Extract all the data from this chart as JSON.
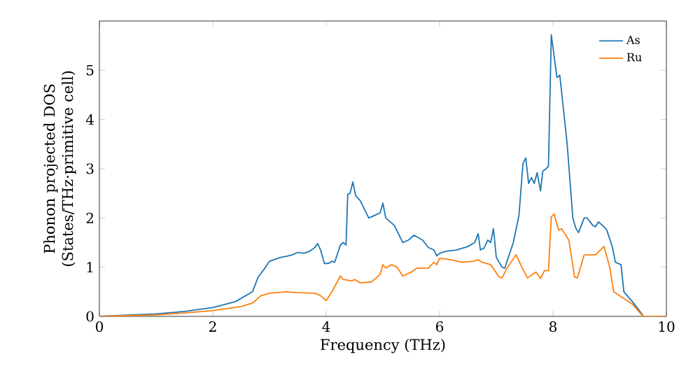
{
  "chart_data": {
    "type": "line",
    "xlabel": "Frequency (THz)",
    "ylabel": "Phonon projected DOS\n(States/THz·primitive cell)",
    "xlim": [
      0,
      10
    ],
    "ylim": [
      0,
      6
    ],
    "xticks": [
      0,
      2,
      4,
      6,
      8,
      10
    ],
    "yticks": [
      0,
      1,
      2,
      3,
      4,
      5
    ],
    "legend": "top right",
    "grid": false,
    "marker": "none",
    "line_style": "solid",
    "series": [
      {
        "name": "As",
        "color": "#1f77b4",
        "x": [
          0,
          1,
          1.5,
          2,
          2.4,
          2.7,
          2.8,
          2.9,
          3.0,
          3.2,
          3.3,
          3.4,
          3.5,
          3.6,
          3.7,
          3.8,
          3.85,
          3.9,
          3.97,
          4.05,
          4.1,
          4.15,
          4.25,
          4.3,
          4.35,
          4.38,
          4.42,
          4.47,
          4.52,
          4.6,
          4.75,
          4.85,
          4.95,
          5.0,
          5.05,
          5.2,
          5.35,
          5.45,
          5.55,
          5.7,
          5.8,
          5.9,
          5.95,
          6.0,
          6.1,
          6.3,
          6.5,
          6.62,
          6.68,
          6.72,
          6.78,
          6.85,
          6.9,
          6.95,
          7.0,
          7.1,
          7.15,
          7.3,
          7.4,
          7.47,
          7.52,
          7.57,
          7.62,
          7.67,
          7.72,
          7.78,
          7.82,
          7.88,
          7.92,
          7.97,
          8.03,
          8.07,
          8.12,
          8.25,
          8.35,
          8.4,
          8.45,
          8.55,
          8.6,
          8.7,
          8.75,
          8.8,
          8.9,
          8.95,
          9.05,
          9.1,
          9.2,
          9.25,
          9.4,
          9.5,
          9.6,
          10
        ],
        "values": [
          0,
          0.05,
          0.1,
          0.18,
          0.3,
          0.5,
          0.8,
          0.95,
          1.12,
          1.2,
          1.22,
          1.25,
          1.3,
          1.28,
          1.32,
          1.4,
          1.48,
          1.35,
          1.07,
          1.08,
          1.12,
          1.1,
          1.45,
          1.5,
          1.45,
          2.48,
          2.5,
          2.73,
          2.45,
          2.35,
          2.0,
          2.05,
          2.1,
          2.3,
          2.0,
          1.85,
          1.5,
          1.55,
          1.65,
          1.55,
          1.4,
          1.35,
          1.23,
          1.28,
          1.32,
          1.35,
          1.42,
          1.5,
          1.68,
          1.35,
          1.38,
          1.55,
          1.5,
          1.78,
          1.2,
          1.0,
          0.98,
          1.5,
          2.05,
          3.1,
          3.22,
          2.7,
          2.82,
          2.7,
          2.92,
          2.55,
          2.95,
          3.0,
          3.05,
          5.72,
          5.2,
          4.85,
          4.9,
          3.5,
          2.0,
          1.8,
          1.7,
          2.0,
          2.0,
          1.85,
          1.82,
          1.92,
          1.82,
          1.75,
          1.4,
          1.1,
          1.05,
          0.5,
          0.3,
          0.15,
          0,
          0
        ]
      },
      {
        "name": "Ru",
        "color": "#ff7f0e",
        "x": [
          0,
          1,
          1.5,
          2,
          2.5,
          2.7,
          2.85,
          3.0,
          3.3,
          3.5,
          3.8,
          3.9,
          4.0,
          4.1,
          4.25,
          4.3,
          4.45,
          4.5,
          4.6,
          4.8,
          4.95,
          5.0,
          5.05,
          5.15,
          5.25,
          5.35,
          5.5,
          5.6,
          5.8,
          5.9,
          5.95,
          6.0,
          6.2,
          6.4,
          6.6,
          6.68,
          6.75,
          6.9,
          7.05,
          7.1,
          7.2,
          7.35,
          7.45,
          7.55,
          7.7,
          7.78,
          7.85,
          7.92,
          7.97,
          8.02,
          8.1,
          8.15,
          8.28,
          8.38,
          8.43,
          8.55,
          8.75,
          8.9,
          9.0,
          9.07,
          9.2,
          9.4,
          9.55,
          9.6,
          10
        ],
        "values": [
          0,
          0.03,
          0.07,
          0.12,
          0.2,
          0.27,
          0.42,
          0.47,
          0.5,
          0.48,
          0.47,
          0.42,
          0.32,
          0.5,
          0.82,
          0.75,
          0.72,
          0.75,
          0.68,
          0.7,
          0.85,
          1.05,
          0.98,
          1.05,
          1.0,
          0.82,
          0.9,
          0.98,
          0.98,
          1.1,
          1.05,
          1.18,
          1.15,
          1.1,
          1.12,
          1.15,
          1.1,
          1.05,
          0.8,
          0.78,
          1.0,
          1.25,
          1.0,
          0.78,
          0.9,
          0.77,
          0.93,
          0.93,
          2.02,
          2.08,
          1.75,
          1.78,
          1.55,
          0.8,
          0.78,
          1.25,
          1.25,
          1.42,
          1.0,
          0.5,
          0.4,
          0.25,
          0.05,
          0,
          0
        ]
      }
    ]
  }
}
